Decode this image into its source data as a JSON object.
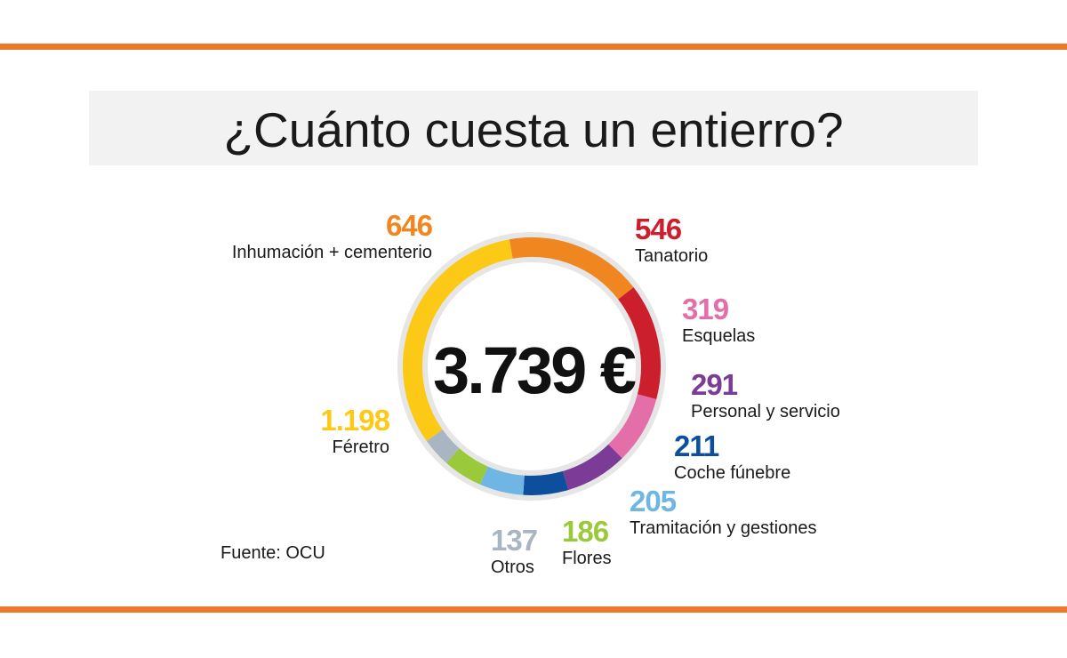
{
  "title": "¿Cuánto cuesta un entierro?",
  "total_label": "3.739 €",
  "source": "Fuente: OCU",
  "colors": {
    "accent_rule": "#ec7a2c",
    "ring_track": "#e6e6e6"
  },
  "chart_data": {
    "type": "pie",
    "title": "¿Cuánto cuesta un entierro?",
    "total": 3739,
    "unit": "€",
    "categories": [
      {
        "name": "Inhumación + cementerio",
        "value": 646,
        "display": "646",
        "color": "#f0861f"
      },
      {
        "name": "Tanatorio",
        "value": 546,
        "display": "546",
        "color": "#cc1f2d"
      },
      {
        "name": "Esquelas",
        "value": 319,
        "display": "319",
        "color": "#e46fa8"
      },
      {
        "name": "Personal y servicio",
        "value": 291,
        "display": "291",
        "color": "#7b3b96"
      },
      {
        "name": "Coche fúnebre",
        "value": 211,
        "display": "211",
        "color": "#0d4f9c"
      },
      {
        "name": "Tramitación y gestiones",
        "value": 205,
        "display": "205",
        "color": "#6fb6e4"
      },
      {
        "name": "Flores",
        "value": 186,
        "display": "186",
        "color": "#9bc93c"
      },
      {
        "name": "Otros",
        "value": 137,
        "display": "137",
        "color": "#a9b6c2"
      },
      {
        "name": "Féretro",
        "value": 1198,
        "display": "1.198",
        "color": "#fcc917"
      }
    ]
  }
}
